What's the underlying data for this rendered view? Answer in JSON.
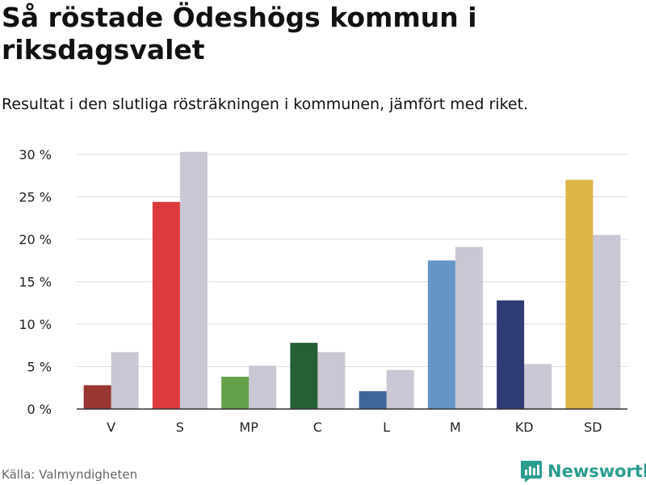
{
  "title": "Så röstade Ödeshögs kommun i riksdagsvalet",
  "subtitle": "Resultat i den slutliga rösträkningen i kommunen, jämfört med riket.",
  "source": "Källa: Valmyndigheten",
  "brand": {
    "name": "Newsworthy",
    "icon": "newsworthy-logo-icon",
    "color": "#2a9d8f"
  },
  "chart_data": {
    "type": "bar",
    "categories": [
      "V",
      "S",
      "MP",
      "C",
      "L",
      "M",
      "KD",
      "SD"
    ],
    "series": [
      {
        "name": "Ödeshögs kommun",
        "values": [
          2.8,
          24.4,
          3.8,
          7.8,
          2.1,
          17.5,
          12.8,
          27.0
        ],
        "colors": [
          "#983631",
          "#dc3a3e",
          "#64a24a",
          "#265f36",
          "#3e6698",
          "#6395c8",
          "#2f3b73",
          "#ddb446"
        ]
      },
      {
        "name": "Riket",
        "values": [
          6.7,
          30.3,
          5.1,
          6.7,
          4.6,
          19.1,
          5.3,
          20.5
        ],
        "color": "#c8c7d3"
      }
    ],
    "ylim": [
      0,
      30
    ],
    "yticks": [
      0,
      5,
      10,
      15,
      20,
      25,
      30
    ],
    "ytick_labels": [
      "0 %",
      "5 %",
      "10 %",
      "15 %",
      "20 %",
      "25 %",
      "30 %"
    ],
    "xlabel": "",
    "ylabel": "",
    "grid": true
  }
}
